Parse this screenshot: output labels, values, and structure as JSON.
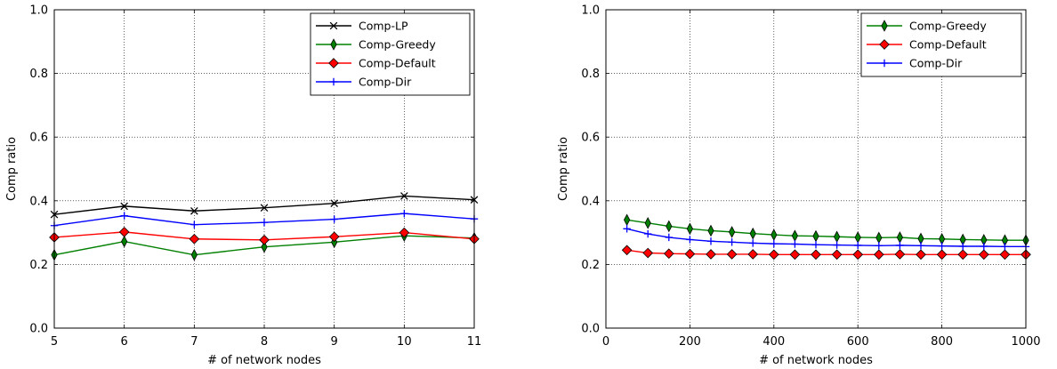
{
  "chart_data": [
    {
      "type": "line",
      "xlabel": "# of network nodes",
      "ylabel": "Comp ratio",
      "xlim": [
        5,
        11
      ],
      "ylim": [
        0,
        1
      ],
      "xticks": [
        "5",
        "6",
        "7",
        "8",
        "9",
        "10",
        "11"
      ],
      "yticks": [
        "0.0",
        "0.2",
        "0.4",
        "0.6",
        "0.8",
        "1.0"
      ],
      "grid": true,
      "legend_position": "top-right",
      "x": [
        5,
        6,
        7,
        8,
        9,
        10,
        11
      ],
      "series": [
        {
          "name": "Comp-LP",
          "color": "#000000",
          "marker": "x",
          "values": [
            0.357,
            0.383,
            0.368,
            0.378,
            0.392,
            0.415,
            0.403
          ]
        },
        {
          "name": "Comp-Greedy",
          "color": "#008000",
          "marker": "thin_diamond",
          "values": [
            0.23,
            0.272,
            0.23,
            0.255,
            0.27,
            0.29,
            0.283
          ]
        },
        {
          "name": "Comp-Default",
          "color": "#ff0000",
          "marker": "diamond",
          "values": [
            0.285,
            0.302,
            0.28,
            0.277,
            0.287,
            0.3,
            0.28
          ]
        },
        {
          "name": "Comp-Dir",
          "color": "#0000ff",
          "marker": "plus",
          "values": [
            0.322,
            0.353,
            0.325,
            0.332,
            0.342,
            0.36,
            0.343
          ]
        }
      ]
    },
    {
      "type": "line",
      "xlabel": "# of network nodes",
      "ylabel": "Comp ratio",
      "xlim": [
        0,
        1000
      ],
      "ylim": [
        0,
        1
      ],
      "xticks": [
        "0",
        "200",
        "400",
        "600",
        "800",
        "1000"
      ],
      "yticks": [
        "0.0",
        "0.2",
        "0.4",
        "0.6",
        "0.8",
        "1.0"
      ],
      "grid": true,
      "legend_position": "top-right",
      "x": [
        50,
        100,
        150,
        200,
        250,
        300,
        350,
        400,
        450,
        500,
        550,
        600,
        650,
        700,
        750,
        800,
        850,
        900,
        950,
        1000
      ],
      "series": [
        {
          "name": "Comp-Greedy",
          "color": "#008000",
          "marker": "thin_diamond",
          "values": [
            0.34,
            0.33,
            0.32,
            0.312,
            0.306,
            0.302,
            0.297,
            0.293,
            0.29,
            0.289,
            0.287,
            0.285,
            0.284,
            0.285,
            0.281,
            0.28,
            0.278,
            0.277,
            0.276,
            0.276
          ]
        },
        {
          "name": "Comp-Default",
          "color": "#ff0000",
          "marker": "diamond",
          "values": [
            0.245,
            0.236,
            0.234,
            0.233,
            0.232,
            0.232,
            0.232,
            0.231,
            0.231,
            0.231,
            0.231,
            0.231,
            0.231,
            0.232,
            0.231,
            0.231,
            0.231,
            0.231,
            0.231,
            0.231
          ]
        },
        {
          "name": "Comp-Dir",
          "color": "#0000ff",
          "marker": "plus",
          "values": [
            0.312,
            0.296,
            0.285,
            0.278,
            0.273,
            0.27,
            0.267,
            0.265,
            0.264,
            0.262,
            0.261,
            0.26,
            0.259,
            0.26,
            0.259,
            0.258,
            0.257,
            0.257,
            0.256,
            0.256
          ]
        }
      ]
    }
  ]
}
